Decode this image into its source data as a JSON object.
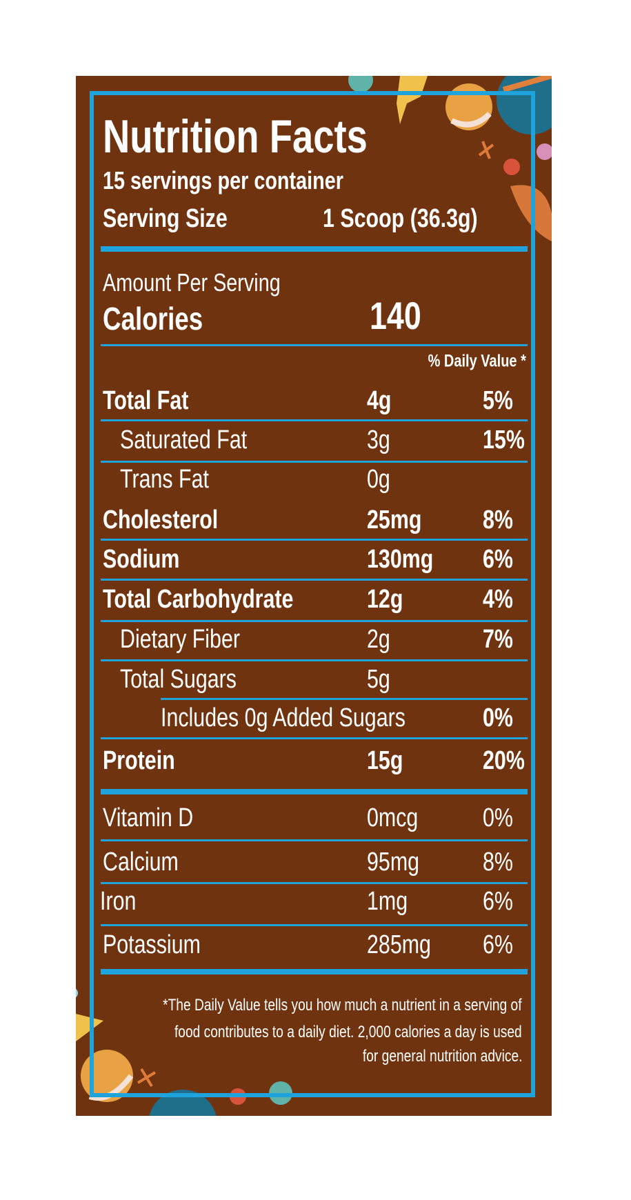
{
  "header": {
    "title": "Nutrition Facts",
    "servings": "15 servings per container",
    "serving_size_label": "Serving Size",
    "serving_size_value": "1 Scoop (36.3g)"
  },
  "calories": {
    "amount_label": "Amount Per Serving",
    "label": "Calories",
    "value": "140"
  },
  "dv_header": "% Daily Value *",
  "nutrients": [
    {
      "label": "Total Fat",
      "amount": "4g",
      "dv": "5%"
    },
    {
      "label": "Saturated Fat",
      "amount": "3g",
      "dv": "15%"
    },
    {
      "label": "Trans Fat",
      "amount": "0g",
      "dv": ""
    },
    {
      "label": "Cholesterol",
      "amount": "25mg",
      "dv": "8%"
    },
    {
      "label": "Sodium",
      "amount": "130mg",
      "dv": "6%"
    },
    {
      "label": "Total Carbohydrate",
      "amount": "12g",
      "dv": "4%"
    },
    {
      "label": "Dietary Fiber",
      "amount": "2g",
      "dv": "7%"
    },
    {
      "label": "Total Sugars",
      "amount": "5g",
      "dv": ""
    },
    {
      "label": "Includes 0g Added Sugars",
      "amount": "",
      "dv": "0%"
    },
    {
      "label": "Protein",
      "amount": "15g",
      "dv": "20%"
    }
  ],
  "vitamins": [
    {
      "label": "Vitamin D",
      "amount": "0mcg",
      "dv": "0%"
    },
    {
      "label": "Calcium",
      "amount": "95mg",
      "dv": "8%"
    },
    {
      "label": "Iron",
      "amount": "1mg",
      "dv": "6%"
    },
    {
      "label": "Potassium",
      "amount": "285mg",
      "dv": "6%"
    }
  ],
  "footnote": [
    "*The Daily Value tells you how much a nutrient in a serving of",
    "food contributes to a daily diet. 2,000 calories a day is used",
    "for general nutrition advice."
  ],
  "colors": {
    "background": "#70330f",
    "accent": "#1fa3dc",
    "text": "#ffffff"
  }
}
